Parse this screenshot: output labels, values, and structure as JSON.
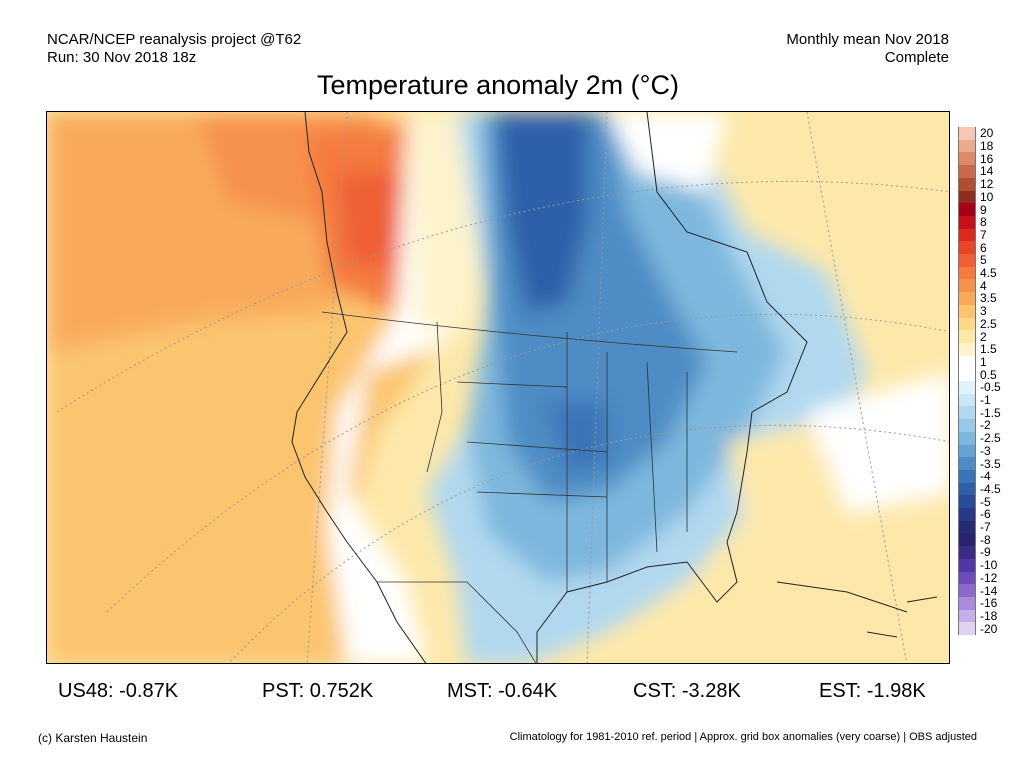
{
  "header": {
    "line1_left": "NCAR/NCEP reanalysis project @T62",
    "line2_left": "Run: 30 Nov 2018 18z",
    "line1_right": "Monthly mean Nov 2018",
    "line2_right": "Complete"
  },
  "title": "Temperature anomaly 2m (°C)",
  "colorbar": {
    "labels": [
      "20",
      "18",
      "16",
      "14",
      "12",
      "10",
      "9",
      "8",
      "7",
      "6",
      "5",
      "4.5",
      "4",
      "3.5",
      "3",
      "2.5",
      "2",
      "1.5",
      "1",
      "0.5",
      "-0.5",
      "-1",
      "-1.5",
      "-2",
      "-2.5",
      "-3",
      "-3.5",
      "-4",
      "-4.5",
      "-5",
      "-6",
      "-7",
      "-8",
      "-9",
      "-10",
      "-12",
      "-14",
      "-16",
      "-18",
      "-20"
    ],
    "colors": [
      "#f4c8b4",
      "#eba98e",
      "#dd8a6c",
      "#c8694b",
      "#b04d33",
      "#8f2d20",
      "#a40016",
      "#c8101a",
      "#dc2a1e",
      "#e8452a",
      "#ef5e34",
      "#f47a3f",
      "#f6924b",
      "#f8aa5a",
      "#fbc46e",
      "#fcd88a",
      "#fde8aa",
      "#fdf3cc",
      "#ffffff",
      "#ffffff",
      "#e2f1fb",
      "#cbe6f6",
      "#b1d8ef",
      "#97c9e6",
      "#7db7dd",
      "#64a2d2",
      "#4e8cc5",
      "#3a75b8",
      "#2f5fa9",
      "#2a4b97",
      "#273a86",
      "#272b76",
      "#2a2470",
      "#3a2c85",
      "#5236a1",
      "#6e4cbb",
      "#8c6acd",
      "#a98bdc",
      "#c6aee9",
      "#ded2f3"
    ]
  },
  "stats": [
    {
      "label": "US48: -0.87K"
    },
    {
      "label": "PST: 0.752K"
    },
    {
      "label": "MST: -0.64K"
    },
    {
      "label": "CST: -3.28K"
    },
    {
      "label": "EST: -1.98K"
    }
  ],
  "footer": {
    "left": "(c) Karsten Haustein",
    "right": "Climatology for 1981-2010 ref. period | Approx. grid box anomalies (very coarse) | OBS adjusted"
  }
}
